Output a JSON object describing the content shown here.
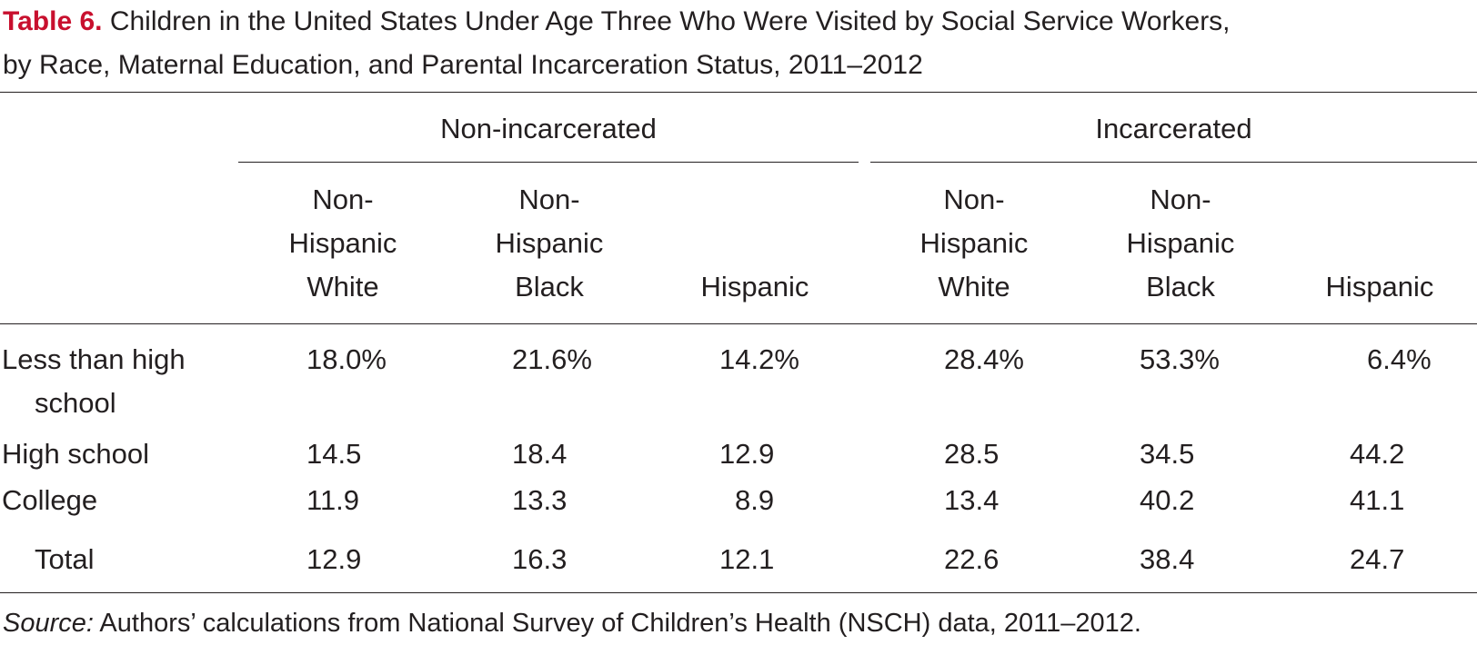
{
  "title": {
    "label": "Table 6.",
    "line1": " Children in the United States Under Age Three Who Were Visited by Social Service Workers,",
    "line2": "by Race, Maternal Education, and Parental Incarceration Status, 2011–2012"
  },
  "groups": [
    "Non-incarcerated",
    "Incarcerated"
  ],
  "columns": [
    [
      "Non-",
      "Hispanic",
      "White"
    ],
    [
      "Non-",
      "Hispanic",
      "Black"
    ],
    [
      "",
      "",
      "Hispanic"
    ],
    [
      "Non-",
      "Hispanic",
      "White"
    ],
    [
      "Non-",
      "Hispanic",
      "Black"
    ],
    [
      "",
      "",
      "Hispanic"
    ]
  ],
  "rows": [
    {
      "label": [
        "Less than high",
        "school"
      ],
      "values": [
        "18.0%",
        "21.6%",
        "14.2%",
        "28.4%",
        "53.3%",
        "6.4%"
      ]
    },
    {
      "label": [
        "High school"
      ],
      "values": [
        "14.5",
        "18.4",
        "12.9",
        "28.5",
        "34.5",
        "44.2"
      ]
    },
    {
      "label": [
        "College"
      ],
      "values": [
        "11.9",
        "13.3",
        "8.9",
        "13.4",
        "40.2",
        "41.1"
      ]
    },
    {
      "label": [
        "Total"
      ],
      "values": [
        "12.9",
        "16.3",
        "12.1",
        "22.6",
        "38.4",
        "24.7"
      ]
    }
  ],
  "source": {
    "label": "Source:",
    "text": " Authors’ calculations from National Survey of Children’s Health (NSCH) data, 2011–2012."
  }
}
